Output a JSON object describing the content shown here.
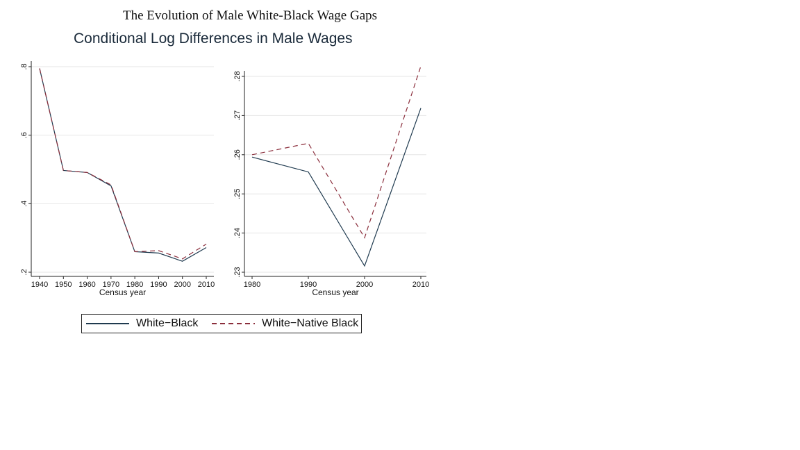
{
  "figure": {
    "title": "The Evolution of Male White-Black Wage Gaps",
    "subtitle": "Conditional Log Differences in Male Wages"
  },
  "colors": {
    "white_black": "#1f3a4f",
    "white_native_black": "#8b2e3c",
    "grid": "#e6e6e6",
    "axis": "#222222"
  },
  "legend": {
    "entries": [
      {
        "label": "White−Black",
        "style": "solid"
      },
      {
        "label": "White−Native Black",
        "style": "dashed"
      }
    ]
  },
  "chart_data": [
    {
      "type": "line",
      "xlabel": "Census year",
      "ylabel": "",
      "x": [
        1940,
        1950,
        1960,
        1970,
        1980,
        1990,
        2000,
        2010
      ],
      "xticks": [
        "1940",
        "1950",
        "1960",
        "1970",
        "1980",
        "1990",
        "2000",
        "2010"
      ],
      "yticks": [
        ".2",
        ".4",
        ".6",
        ".8"
      ],
      "xlim": [
        1940,
        2010
      ],
      "ylim": [
        0.2,
        0.8
      ],
      "grid": true,
      "series": [
        {
          "values": [
            0.795,
            0.497,
            0.491,
            0.452,
            0.26,
            0.256,
            0.232,
            0.272
          ]
        },
        {
          "values": [
            0.795,
            0.497,
            0.491,
            0.455,
            0.26,
            0.263,
            0.239,
            0.282
          ]
        }
      ]
    },
    {
      "type": "line",
      "xlabel": "Census year",
      "ylabel": "",
      "x": [
        1980,
        1990,
        2000,
        2010
      ],
      "xticks": [
        "1980",
        "1990",
        "2000",
        "2010"
      ],
      "yticks": [
        ".23",
        ".24",
        ".25",
        ".26",
        ".27",
        ".28"
      ],
      "xlim": [
        1980,
        2010
      ],
      "ylim": [
        0.23,
        0.28
      ],
      "grid": true,
      "series": [
        {
          "values": [
            0.2594,
            0.2556,
            0.2316,
            0.2719
          ]
        },
        {
          "values": [
            0.26,
            0.2629,
            0.2388,
            0.2826
          ]
        }
      ]
    }
  ]
}
